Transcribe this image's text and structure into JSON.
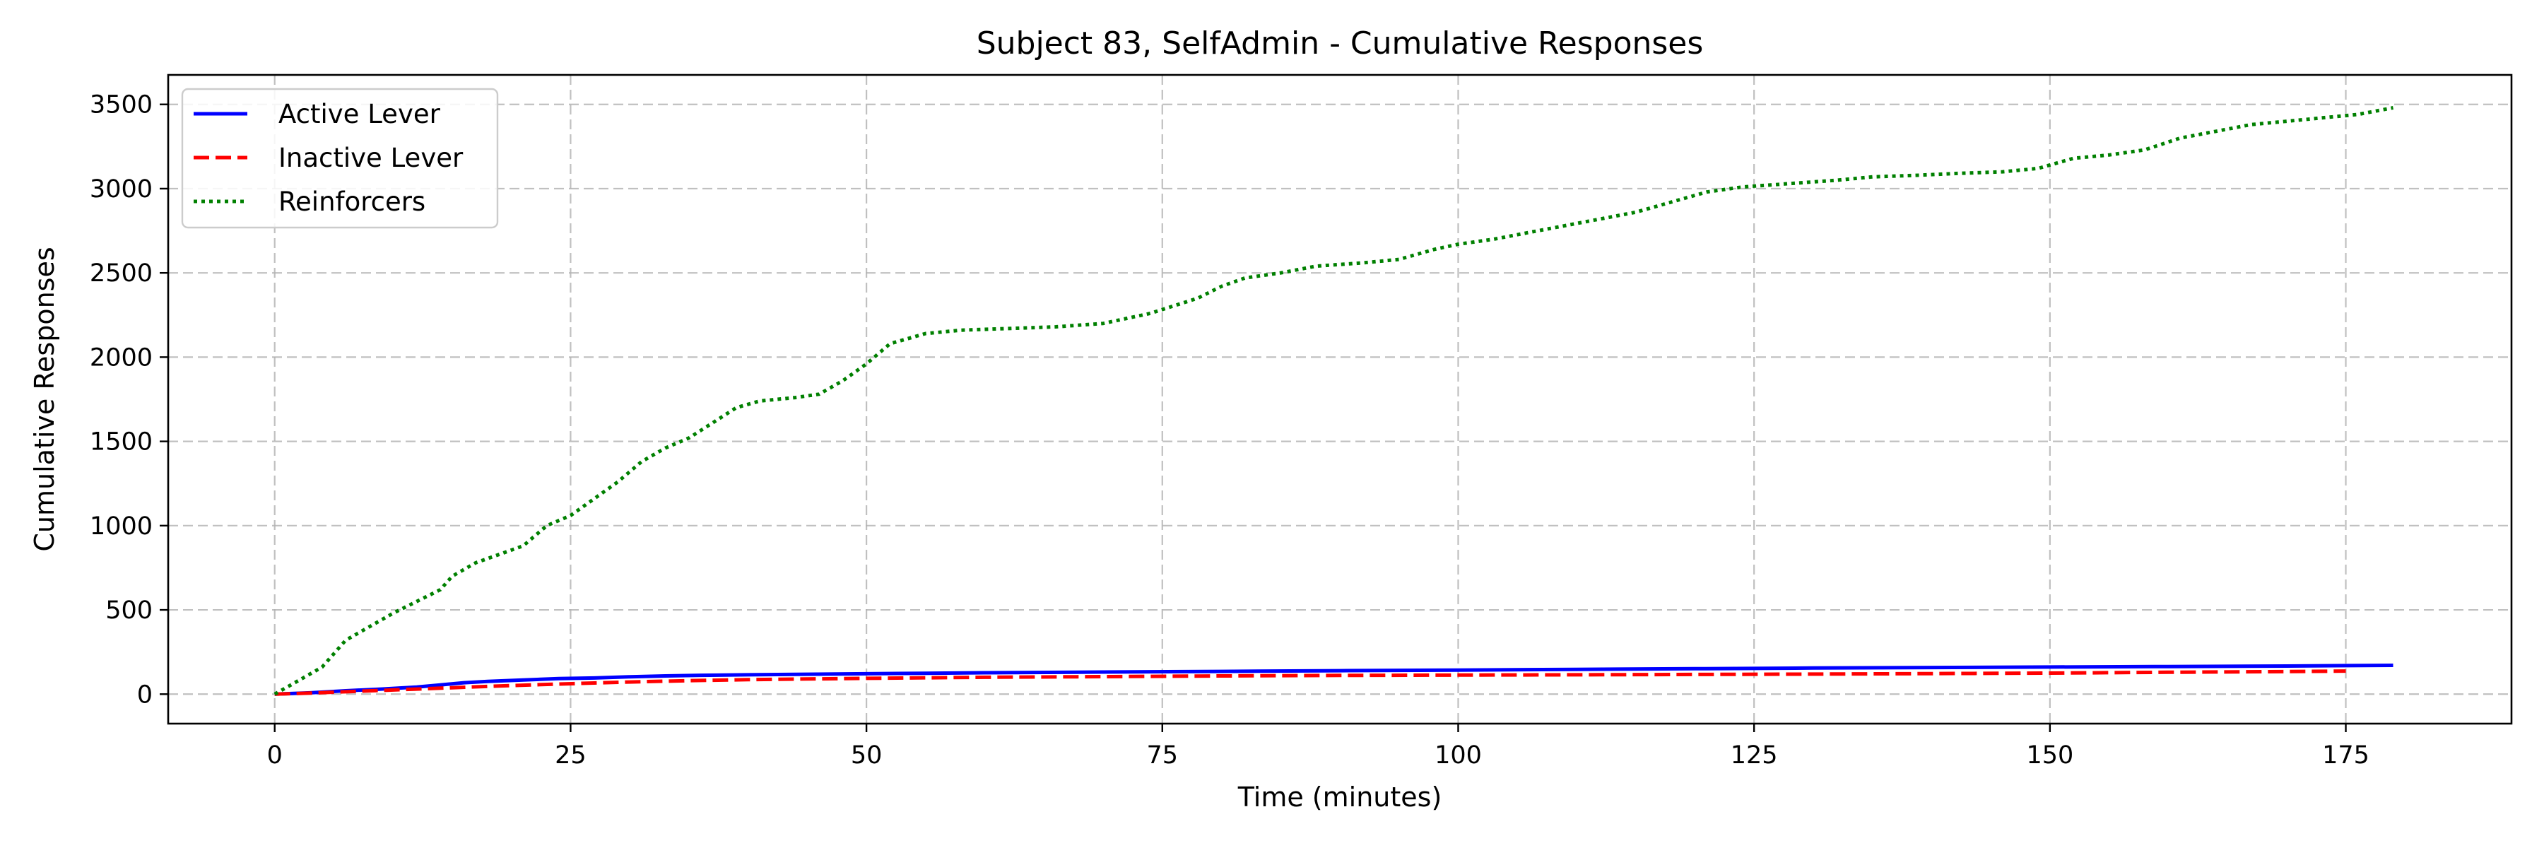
{
  "chart_data": {
    "type": "line",
    "title": "Subject 83, SelfAdmin - Cumulative Responses",
    "xlabel": "Time (minutes)",
    "ylabel": "Cumulative Responses",
    "xlim": [
      -9,
      189
    ],
    "ylim": [
      -175,
      3675
    ],
    "xticks": [
      0,
      25,
      50,
      75,
      100,
      125,
      150,
      175
    ],
    "yticks": [
      0,
      500,
      1000,
      1500,
      2000,
      2500,
      3000,
      3500
    ],
    "grid": true,
    "legend": "top-left",
    "series": [
      {
        "name": "Active Lever",
        "color": "#0000ff",
        "style": "solid",
        "points": [
          [
            0,
            0
          ],
          [
            3,
            8
          ],
          [
            6,
            20
          ],
          [
            9,
            30
          ],
          [
            12,
            42
          ],
          [
            14,
            55
          ],
          [
            16,
            68
          ],
          [
            18,
            76
          ],
          [
            21,
            84
          ],
          [
            24,
            92
          ],
          [
            27,
            96
          ],
          [
            30,
            103
          ],
          [
            33,
            108
          ],
          [
            36,
            112
          ],
          [
            40,
            115
          ],
          [
            45,
            118
          ],
          [
            50,
            121
          ],
          [
            55,
            124
          ],
          [
            60,
            127
          ],
          [
            70,
            131
          ],
          [
            80,
            135
          ],
          [
            90,
            139
          ],
          [
            100,
            143
          ],
          [
            110,
            147
          ],
          [
            120,
            151
          ],
          [
            130,
            155
          ],
          [
            140,
            158
          ],
          [
            150,
            161
          ],
          [
            160,
            164
          ],
          [
            170,
            167
          ],
          [
            179,
            171
          ]
        ]
      },
      {
        "name": "Inactive Lever",
        "color": "#ff0000",
        "style": "dashed",
        "points": [
          [
            0,
            0
          ],
          [
            3,
            6
          ],
          [
            6,
            14
          ],
          [
            9,
            22
          ],
          [
            12,
            30
          ],
          [
            15,
            38
          ],
          [
            18,
            46
          ],
          [
            21,
            53
          ],
          [
            24,
            60
          ],
          [
            27,
            66
          ],
          [
            30,
            72
          ],
          [
            35,
            80
          ],
          [
            40,
            86
          ],
          [
            45,
            90
          ],
          [
            50,
            94
          ],
          [
            60,
            100
          ],
          [
            70,
            104
          ],
          [
            80,
            108
          ],
          [
            90,
            111
          ],
          [
            100,
            113
          ],
          [
            110,
            115
          ],
          [
            120,
            117
          ],
          [
            130,
            119
          ],
          [
            140,
            122
          ],
          [
            150,
            125
          ],
          [
            160,
            130
          ],
          [
            170,
            134
          ],
          [
            175,
            137
          ]
        ]
      },
      {
        "name": "Reinforcers",
        "color": "#008000",
        "style": "dotted",
        "points": [
          [
            0,
            0
          ],
          [
            2,
            80
          ],
          [
            4,
            160
          ],
          [
            5,
            240
          ],
          [
            6,
            320
          ],
          [
            8,
            400
          ],
          [
            10,
            480
          ],
          [
            12,
            550
          ],
          [
            14,
            620
          ],
          [
            15,
            700
          ],
          [
            17,
            780
          ],
          [
            19,
            830
          ],
          [
            21,
            880
          ],
          [
            23,
            1000
          ],
          [
            25,
            1060
          ],
          [
            27,
            1160
          ],
          [
            29,
            1260
          ],
          [
            31,
            1380
          ],
          [
            33,
            1460
          ],
          [
            35,
            1520
          ],
          [
            37,
            1610
          ],
          [
            39,
            1700
          ],
          [
            41,
            1740
          ],
          [
            44,
            1760
          ],
          [
            46,
            1780
          ],
          [
            48,
            1860
          ],
          [
            50,
            1960
          ],
          [
            52,
            2080
          ],
          [
            55,
            2140
          ],
          [
            58,
            2160
          ],
          [
            62,
            2170
          ],
          [
            66,
            2180
          ],
          [
            70,
            2200
          ],
          [
            74,
            2260
          ],
          [
            78,
            2350
          ],
          [
            80,
            2420
          ],
          [
            82,
            2470
          ],
          [
            85,
            2500
          ],
          [
            88,
            2540
          ],
          [
            92,
            2560
          ],
          [
            95,
            2580
          ],
          [
            98,
            2640
          ],
          [
            100,
            2670
          ],
          [
            103,
            2700
          ],
          [
            106,
            2740
          ],
          [
            109,
            2780
          ],
          [
            112,
            2820
          ],
          [
            115,
            2860
          ],
          [
            118,
            2920
          ],
          [
            121,
            2980
          ],
          [
            124,
            3010
          ],
          [
            128,
            3030
          ],
          [
            132,
            3050
          ],
          [
            135,
            3070
          ],
          [
            139,
            3080
          ],
          [
            142,
            3090
          ],
          [
            146,
            3100
          ],
          [
            149,
            3120
          ],
          [
            152,
            3180
          ],
          [
            155,
            3200
          ],
          [
            158,
            3230
          ],
          [
            161,
            3300
          ],
          [
            164,
            3340
          ],
          [
            167,
            3380
          ],
          [
            170,
            3400
          ],
          [
            173,
            3420
          ],
          [
            176,
            3440
          ],
          [
            179,
            3480
          ]
        ]
      }
    ]
  }
}
